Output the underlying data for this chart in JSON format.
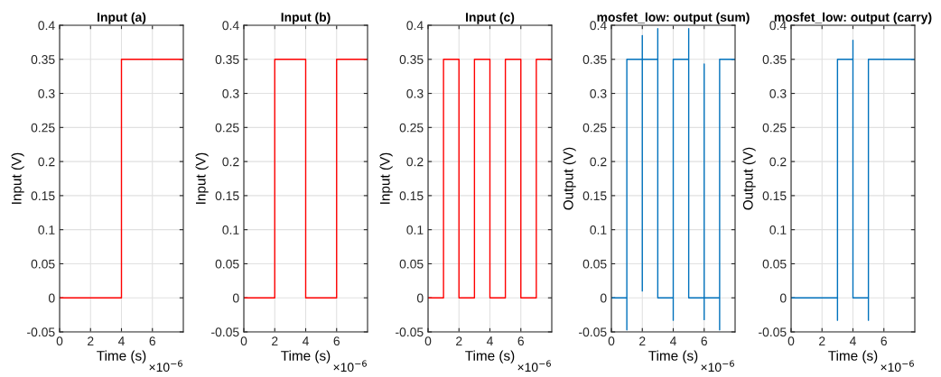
{
  "chart_data": [
    {
      "type": "line",
      "title": "Input (a)",
      "xlabel": "Time (s)",
      "ylabel": "Input (V)",
      "annotations": [
        "×10$^{−6}$"
      ],
      "xlim": [
        0,
        8
      ],
      "xticks": [
        0,
        2,
        4,
        6
      ],
      "ylim": [
        -0.05,
        0.4
      ],
      "yticks": [
        -0.05,
        0,
        0.05,
        0.1,
        0.15,
        0.2,
        0.25,
        0.3,
        0.35,
        0.4
      ],
      "grid": true,
      "series": [
        {
          "color": "#ff0000",
          "x": [
            0,
            4,
            4,
            8
          ],
          "values": [
            0,
            0,
            0.35,
            0.35
          ]
        }
      ]
    },
    {
      "type": "line",
      "title": "Input (b)",
      "xlabel": "Time (s)",
      "ylabel": "Input (V)",
      "annotations": [
        "×10$^{−6}$"
      ],
      "xlim": [
        0,
        8
      ],
      "xticks": [
        0,
        2,
        4,
        6
      ],
      "ylim": [
        -0.05,
        0.4
      ],
      "yticks": [
        -0.05,
        0,
        0.05,
        0.1,
        0.15,
        0.2,
        0.25,
        0.3,
        0.35,
        0.4
      ],
      "grid": true,
      "series": [
        {
          "color": "#ff0000",
          "x": [
            0,
            2,
            2,
            4,
            4,
            6,
            6,
            8
          ],
          "values": [
            0,
            0,
            0.35,
            0.35,
            0,
            0,
            0.35,
            0.35
          ]
        }
      ]
    },
    {
      "type": "line",
      "title": "Input (c)",
      "xlabel": "Time (s)",
      "ylabel": "Input (V)",
      "annotations": [
        "×10$^{−6}$"
      ],
      "xlim": [
        0,
        8
      ],
      "xticks": [
        0,
        2,
        4,
        6
      ],
      "ylim": [
        -0.05,
        0.4
      ],
      "yticks": [
        -0.05,
        0,
        0.05,
        0.1,
        0.15,
        0.2,
        0.25,
        0.3,
        0.35,
        0.4
      ],
      "grid": true,
      "series": [
        {
          "color": "#ff0000",
          "x": [
            0,
            1,
            1,
            2,
            2,
            3,
            3,
            4,
            4,
            5,
            5,
            6,
            6,
            7,
            7,
            8
          ],
          "values": [
            0,
            0,
            0.35,
            0.35,
            0,
            0,
            0.35,
            0.35,
            0,
            0,
            0.35,
            0.35,
            0,
            0,
            0.35,
            0.35
          ]
        }
      ]
    },
    {
      "type": "line",
      "title": "mosfet_low: output (sum)",
      "xlabel": "Time (s)",
      "ylabel": "Output (V)",
      "annotations": [
        "×10$^{−6}$"
      ],
      "xlim": [
        0,
        8
      ],
      "xticks": [
        0,
        2,
        4,
        6
      ],
      "ylim": [
        -0.05,
        0.4
      ],
      "yticks": [
        -0.05,
        0,
        0.05,
        0.1,
        0.15,
        0.2,
        0.25,
        0.3,
        0.35,
        0.4
      ],
      "grid": true,
      "series": [
        {
          "color": "#0072bd",
          "x": [
            0,
            1,
            1,
            1,
            2,
            2,
            2,
            2,
            3,
            3,
            3,
            4,
            4,
            4,
            4,
            5,
            5,
            5,
            6,
            6,
            6,
            6,
            7,
            7,
            7,
            8
          ],
          "values": [
            0,
            0,
            -0.047,
            0.35,
            0.35,
            0.385,
            0.01,
            0.35,
            0.35,
            0.395,
            0,
            0,
            0.008,
            -0.033,
            0.35,
            0.35,
            0.395,
            0,
            0,
            0.343,
            -0.032,
            0,
            0,
            -0.047,
            0.35,
            0.35
          ]
        }
      ]
    },
    {
      "type": "line",
      "title": "mosfet_low: output (carry)",
      "xlabel": "Time (s)",
      "ylabel": "Output (V)",
      "annotations": [
        "×10$^{−6}$"
      ],
      "xlim": [
        0,
        8
      ],
      "xticks": [
        0,
        2,
        4,
        6
      ],
      "ylim": [
        -0.05,
        0.4
      ],
      "yticks": [
        -0.05,
        0,
        0.05,
        0.1,
        0.15,
        0.2,
        0.25,
        0.3,
        0.35,
        0.4
      ],
      "grid": true,
      "series": [
        {
          "color": "#0072bd",
          "x": [
            0,
            3,
            3,
            3,
            4,
            4,
            4,
            5,
            5,
            5,
            8
          ],
          "values": [
            0,
            0,
            -0.033,
            0.35,
            0.35,
            0.378,
            0,
            0,
            -0.033,
            0.35,
            0.35
          ]
        }
      ]
    }
  ]
}
